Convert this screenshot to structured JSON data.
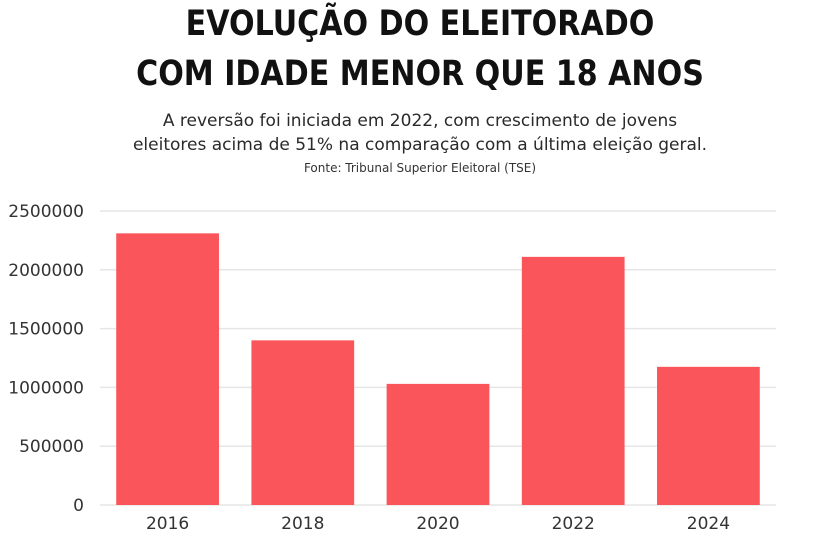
{
  "header": {
    "title_line1": "EVOLUÇÃO DO ELEITORADO",
    "title_line2": "COM IDADE MENOR QUE 18 ANOS",
    "subtitle_line1": "A reversão foi iniciada em 2022, com crescimento de jovens",
    "subtitle_line2": "eleitores acima de 51% na comparação com a última eleição geral.",
    "source": "Fonte: Tribunal Superior Eleitoral (TSE)"
  },
  "colors": {
    "bar": "#f9555a",
    "grid": "#e6e6e6",
    "text": "#333333"
  },
  "chart_data": {
    "type": "bar",
    "title": "EVOLUÇÃO DO ELEITORADO COM IDADE MENOR QUE 18 ANOS",
    "subtitle": "A reversão foi iniciada em 2022, com crescimento de jovens eleitores acima de 51% na comparação com a última eleição geral.",
    "xlabel": "",
    "ylabel": "",
    "categories": [
      "2016",
      "2018",
      "2020",
      "2022",
      "2024"
    ],
    "values": [
      2310000,
      1400000,
      1030000,
      2110000,
      1175000
    ],
    "ylim": [
      0,
      2500000
    ],
    "yticks": [
      "0",
      "500000",
      "1000000",
      "1500000",
      "2000000",
      "2500000"
    ],
    "grid": true,
    "legend": "none"
  }
}
